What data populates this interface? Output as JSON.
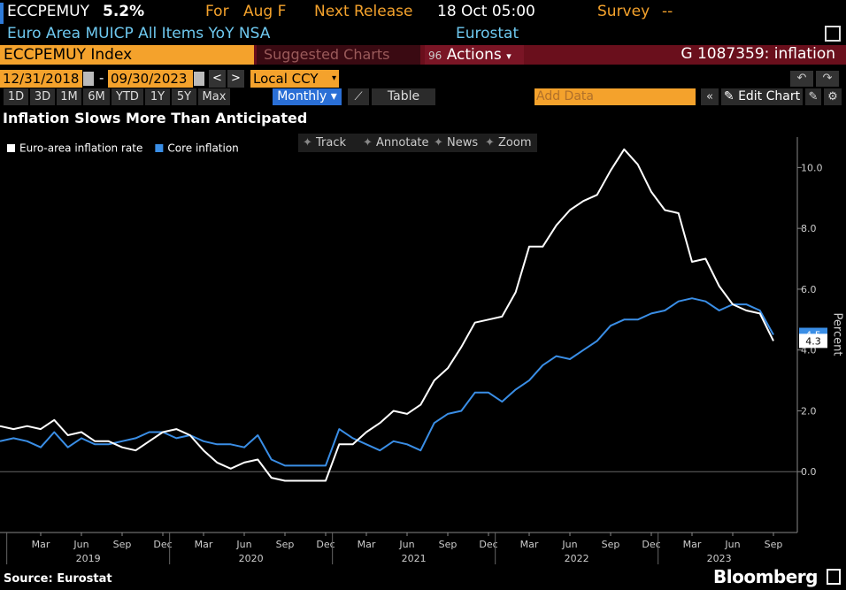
{
  "header": {
    "ticker": "ECCPEMUY",
    "value": "5.2%",
    "for_label": "For",
    "for_value": "Aug F",
    "release_label": "Next Release",
    "release_value": "18 Oct 05:00",
    "survey_label": "Survey",
    "survey_value": "--",
    "description": "Euro Area MUICP All Items YoY NSA",
    "source": "Eurostat"
  },
  "toolbar": {
    "security": "ECCPEMUY Index",
    "suggested": "Suggested Charts",
    "actions_icon": "96",
    "actions": "Actions",
    "function": "G 1087359: inflation",
    "start_date": "12/31/2018",
    "date_sep": "-",
    "end_date": "09/30/2023",
    "currency": "Local CCY",
    "periods": [
      "1D",
      "3D",
      "1M",
      "6M",
      "YTD",
      "1Y",
      "5Y",
      "Max"
    ],
    "frequency": "Monthly",
    "table": "Table",
    "add_data": "Add Data",
    "edit_chart": "Edit Chart"
  },
  "chart_tools": [
    "Track",
    "Annotate",
    "News",
    "Zoom"
  ],
  "chart_data": {
    "type": "line",
    "title": "Inflation Slows More Than Anticipated",
    "ylabel": "Percent",
    "x": [
      "2018-12",
      "2019-01",
      "2019-02",
      "2019-03",
      "2019-04",
      "2019-05",
      "2019-06",
      "2019-07",
      "2019-08",
      "2019-09",
      "2019-10",
      "2019-11",
      "2019-12",
      "2020-01",
      "2020-02",
      "2020-03",
      "2020-04",
      "2020-05",
      "2020-06",
      "2020-07",
      "2020-08",
      "2020-09",
      "2020-10",
      "2020-11",
      "2020-12",
      "2021-01",
      "2021-02",
      "2021-03",
      "2021-04",
      "2021-05",
      "2021-06",
      "2021-07",
      "2021-08",
      "2021-09",
      "2021-10",
      "2021-11",
      "2021-12",
      "2022-01",
      "2022-02",
      "2022-03",
      "2022-04",
      "2022-05",
      "2022-06",
      "2022-07",
      "2022-08",
      "2022-09",
      "2022-10",
      "2022-11",
      "2022-12",
      "2023-01",
      "2023-02",
      "2023-03",
      "2023-04",
      "2023-05",
      "2023-06",
      "2023-07",
      "2023-08",
      "2023-09"
    ],
    "series": [
      {
        "name": "Euro-area inflation rate",
        "color": "#ffffff",
        "values": [
          1.5,
          1.4,
          1.5,
          1.4,
          1.7,
          1.2,
          1.3,
          1.0,
          1.0,
          0.8,
          0.7,
          1.0,
          1.3,
          1.4,
          1.2,
          0.7,
          0.3,
          0.1,
          0.3,
          0.4,
          -0.2,
          -0.3,
          -0.3,
          -0.3,
          -0.3,
          0.9,
          0.9,
          1.3,
          1.6,
          2.0,
          1.9,
          2.2,
          3.0,
          3.4,
          4.1,
          4.9,
          5.0,
          5.1,
          5.9,
          7.4,
          7.4,
          8.1,
          8.6,
          8.9,
          9.1,
          9.9,
          10.6,
          10.1,
          9.2,
          8.6,
          8.5,
          6.9,
          7.0,
          6.1,
          5.5,
          5.3,
          5.2,
          4.3
        ]
      },
      {
        "name": "Core inflation",
        "color": "#3a8ee6",
        "values": [
          1.0,
          1.1,
          1.0,
          0.8,
          1.3,
          0.8,
          1.1,
          0.9,
          0.9,
          1.0,
          1.1,
          1.3,
          1.3,
          1.1,
          1.2,
          1.0,
          0.9,
          0.9,
          0.8,
          1.2,
          0.4,
          0.2,
          0.2,
          0.2,
          0.2,
          1.4,
          1.1,
          0.9,
          0.7,
          1.0,
          0.9,
          0.7,
          1.6,
          1.9,
          2.0,
          2.6,
          2.6,
          2.3,
          2.7,
          3.0,
          3.5,
          3.8,
          3.7,
          4.0,
          4.3,
          4.8,
          5.0,
          5.0,
          5.2,
          5.3,
          5.6,
          5.7,
          5.6,
          5.3,
          5.5,
          5.5,
          5.3,
          4.5
        ]
      }
    ],
    "ylim": [
      -2,
      11
    ],
    "yticks": [
      {
        "value": 0,
        "label": "0.0"
      },
      {
        "value": 2,
        "label": "2.0"
      },
      {
        "value": 4,
        "label": "4.0"
      },
      {
        "value": 6,
        "label": "6.0"
      },
      {
        "value": 8,
        "label": "8.0"
      },
      {
        "value": 10,
        "label": "10.0"
      }
    ],
    "xticks": [
      {
        "value": "2019-03",
        "label": "Mar"
      },
      {
        "value": "2019-06",
        "label": "Jun"
      },
      {
        "value": "2019-09",
        "label": "Sep"
      },
      {
        "value": "2019-12",
        "label": "Dec"
      },
      {
        "value": "2020-03",
        "label": "Mar"
      },
      {
        "value": "2020-06",
        "label": "Jun"
      },
      {
        "value": "2020-09",
        "label": "Sep"
      },
      {
        "value": "2020-12",
        "label": "Dec"
      },
      {
        "value": "2021-03",
        "label": "Mar"
      },
      {
        "value": "2021-06",
        "label": "Jun"
      },
      {
        "value": "2021-09",
        "label": "Sep"
      },
      {
        "value": "2021-12",
        "label": "Dec"
      },
      {
        "value": "2022-03",
        "label": "Mar"
      },
      {
        "value": "2022-06",
        "label": "Jun"
      },
      {
        "value": "2022-09",
        "label": "Sep"
      },
      {
        "value": "2022-12",
        "label": "Dec"
      },
      {
        "value": "2023-03",
        "label": "Mar"
      },
      {
        "value": "2023-06",
        "label": "Jun"
      },
      {
        "value": "2023-09",
        "label": "Sep"
      }
    ],
    "years": [
      "2019",
      "2020",
      "2021",
      "2022",
      "2023"
    ],
    "legend": "top-left"
  },
  "footer": {
    "source": "Source: Eurostat",
    "brand": "Bloomberg"
  }
}
